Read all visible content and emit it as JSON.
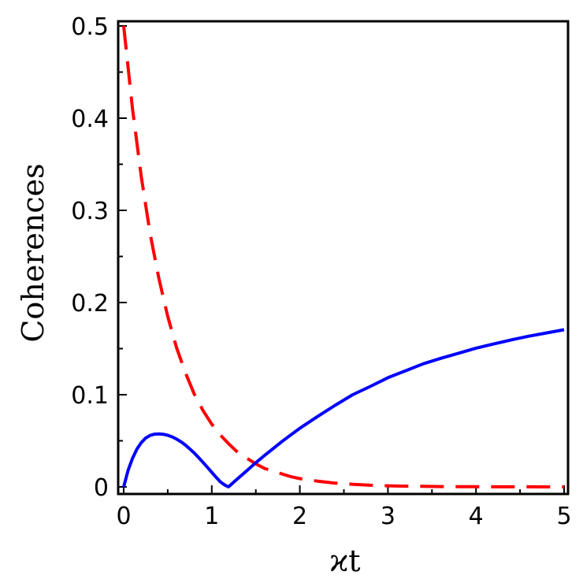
{
  "chart_data": {
    "type": "line",
    "title": "",
    "xlabel": "ϰt",
    "ylabel": "Coherences",
    "xlim": [
      0,
      5
    ],
    "ylim": [
      0,
      0.5
    ],
    "xticks": [
      "0",
      "1",
      "2",
      "3",
      "4",
      "5"
    ],
    "yticks": [
      "0",
      "0.1",
      "0.2",
      "0.3",
      "0.4",
      "0.5"
    ],
    "grid": false,
    "legend": "none",
    "series": [
      {
        "color": "#ff0000",
        "style": "dashed",
        "x": [
          0,
          0.1,
          0.2,
          0.3,
          0.4,
          0.5,
          0.6,
          0.7,
          0.8,
          0.9,
          1.0,
          1.1,
          1.2,
          1.3,
          1.4,
          1.5,
          1.6,
          1.7,
          1.8,
          1.9,
          2.0,
          2.2,
          2.4,
          2.6,
          2.8,
          3.0,
          3.2,
          3.4,
          3.6,
          3.8,
          4.0,
          4.2,
          4.4,
          4.6,
          4.8,
          5.0
        ],
        "y": [
          0.5,
          0.41,
          0.336,
          0.275,
          0.226,
          0.185,
          0.151,
          0.124,
          0.101,
          0.083,
          0.068,
          0.056,
          0.046,
          0.037,
          0.031,
          0.025,
          0.02,
          0.017,
          0.014,
          0.011,
          0.009,
          0.0062,
          0.0041,
          0.0028,
          0.0018,
          0.0012,
          0.0008,
          0.00056,
          0.00037,
          0.00025,
          0.00017,
          0.00011,
          7e-05,
          5e-05,
          3e-05,
          2e-05
        ]
      },
      {
        "color": "#0000ff",
        "style": "solid",
        "x": [
          0,
          0.05,
          0.1,
          0.15,
          0.2,
          0.25,
          0.3,
          0.35,
          0.4,
          0.45,
          0.5,
          0.55,
          0.6,
          0.65,
          0.7,
          0.75,
          0.8,
          0.85,
          0.9,
          0.95,
          1.0,
          1.05,
          1.1,
          1.15,
          1.19,
          1.25,
          1.3,
          1.4,
          1.5,
          1.6,
          1.7,
          1.8,
          1.9,
          2.0,
          2.2,
          2.4,
          2.6,
          2.8,
          3.0,
          3.2,
          3.4,
          3.6,
          3.8,
          4.0,
          4.2,
          4.4,
          4.6,
          4.8,
          5.0
        ],
        "y": [
          0,
          0.018,
          0.031,
          0.041,
          0.048,
          0.053,
          0.0558,
          0.0572,
          0.0575,
          0.0571,
          0.056,
          0.0543,
          0.0519,
          0.0489,
          0.0454,
          0.0413,
          0.0368,
          0.0319,
          0.0267,
          0.0213,
          0.0158,
          0.0103,
          0.0052,
          0.0019,
          0.0,
          0.0052,
          0.0094,
          0.0178,
          0.0262,
          0.0342,
          0.0418,
          0.0494,
          0.0566,
          0.0636,
          0.0763,
          0.0885,
          0.1,
          0.109,
          0.1185,
          0.126,
          0.1335,
          0.1395,
          0.145,
          0.1505,
          0.155,
          0.1595,
          0.1635,
          0.167,
          0.1705
        ]
      }
    ]
  }
}
